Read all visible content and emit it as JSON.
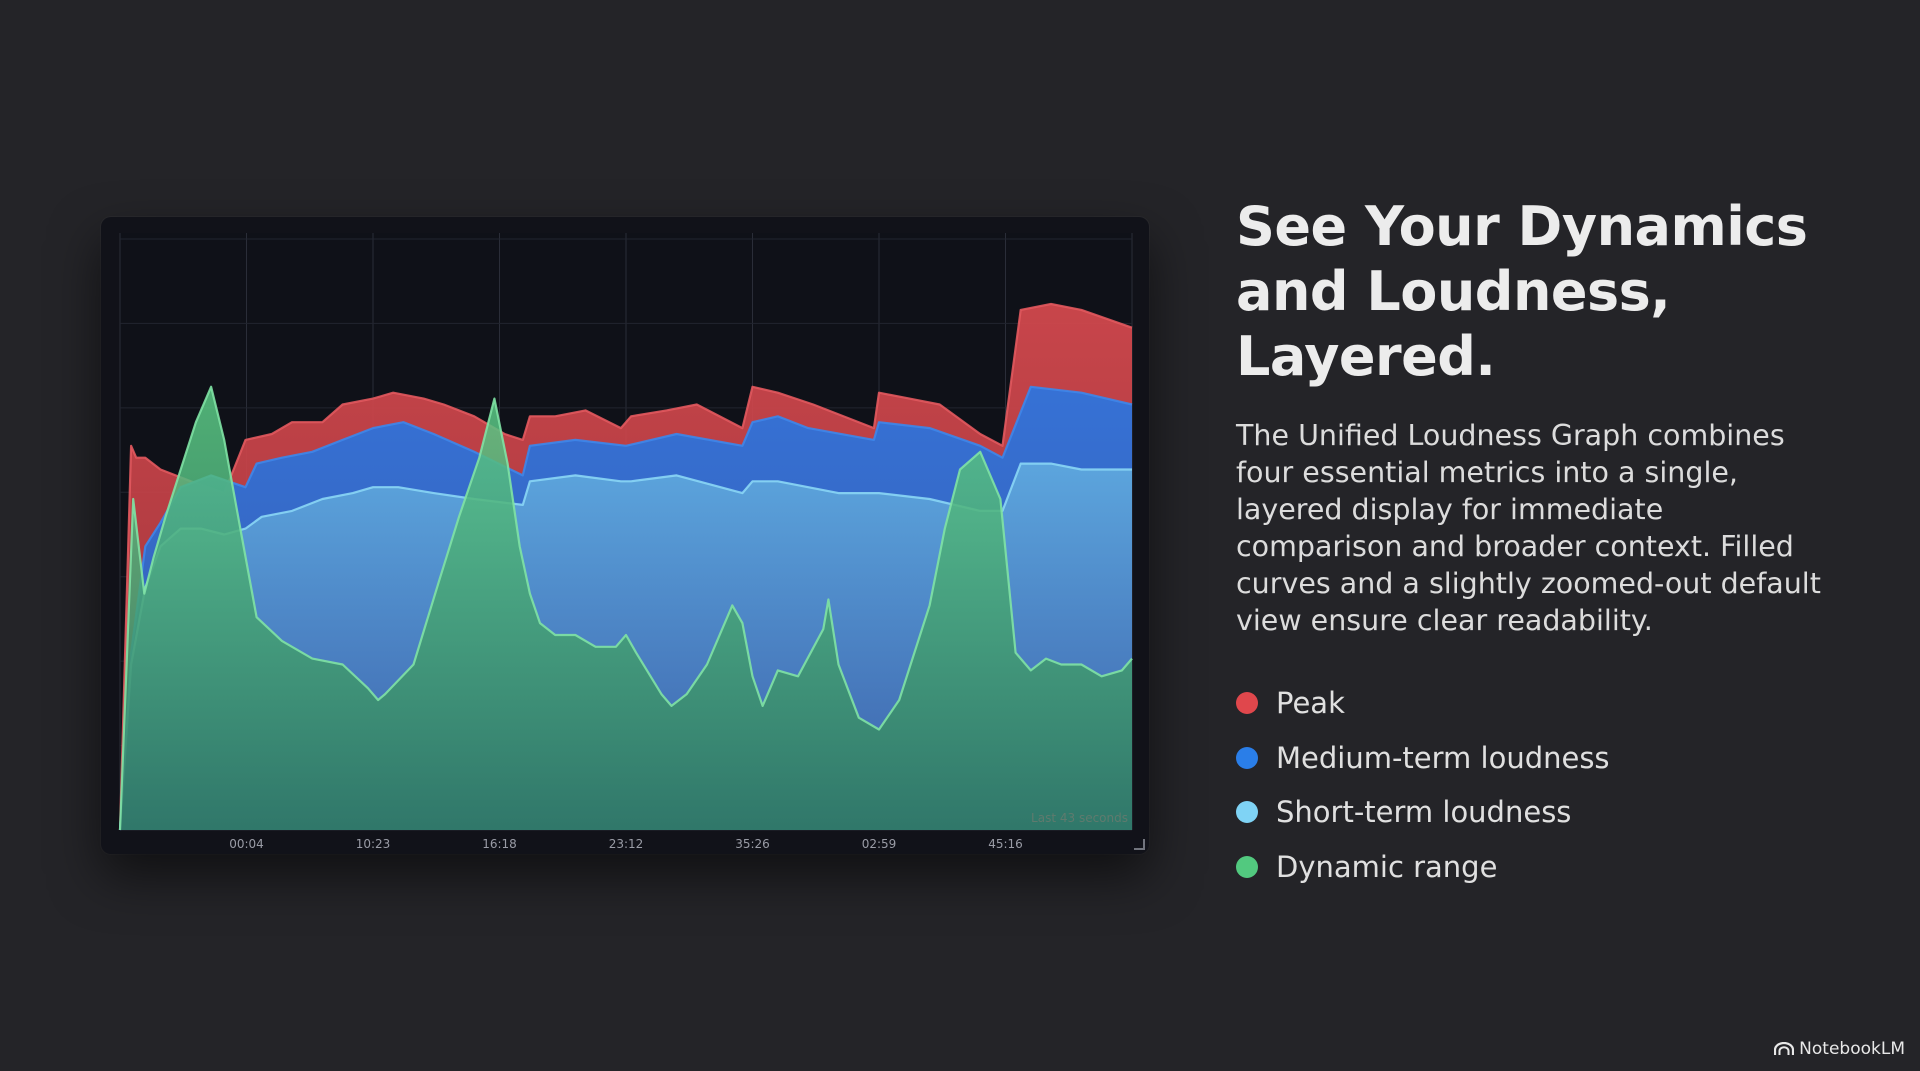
{
  "heading": "See Your Dynamics and Loudness, Layered.",
  "description": "The Unified Loudness Graph combines four essential metrics into a single, layered display for immediate comparison and broader context. Filled curves and a slightly zoomed-out default view ensure clear readability.",
  "legend": [
    {
      "label": "Peak",
      "color": "#e0474c"
    },
    {
      "label": "Medium-term loudness",
      "color": "#2a7ee8"
    },
    {
      "label": "Short-term loudness",
      "color": "#7fd3f5"
    },
    {
      "label": "Dynamic range",
      "color": "#52c97f"
    }
  ],
  "brand": "NotebookLM",
  "chart_data": {
    "type": "area",
    "title": "",
    "xlabel": "",
    "ylabel": "",
    "ylim": [
      0,
      100
    ],
    "xlim": [
      0,
      100
    ],
    "grid": true,
    "legend": "none",
    "x_tick_labels": [
      "00:04",
      "10:23",
      "16:18",
      "23:12",
      "35:26",
      "02:59",
      "45:16"
    ],
    "x_tick_positions": [
      12.5,
      25,
      37.5,
      50,
      62.5,
      75,
      87.5
    ],
    "annotation": "Last 43 seconds",
    "series": [
      {
        "name": "Peak",
        "color": "#d9474d",
        "x": [
          0,
          1.1,
          1.6,
          2.5,
          4,
          7,
          10.3,
          12.4,
          15,
          17,
          20,
          22,
          25,
          27,
          30,
          32,
          35,
          38,
          39.8,
          40.5,
          43,
          46,
          49.5,
          50.5,
          54,
          57,
          61.5,
          62.5,
          65,
          68.5,
          74.5,
          75,
          78,
          81,
          85,
          87.2,
          89,
          92,
          95,
          100
        ],
        "values": [
          0,
          65,
          63,
          63,
          61,
          59,
          57,
          66,
          67,
          69,
          69,
          72,
          73,
          74,
          73,
          72,
          70,
          67,
          66,
          70,
          70,
          71,
          68,
          70,
          71,
          72,
          68,
          75,
          74,
          72,
          68,
          74,
          73,
          72,
          67,
          65,
          88,
          89,
          88,
          85
        ]
      },
      {
        "name": "Medium-term loudness",
        "color": "#2f6fd6",
        "x": [
          0,
          1.1,
          2.5,
          4,
          6,
          9,
          12.4,
          13.5,
          16,
          19,
          22,
          25,
          28,
          31,
          35,
          39.8,
          40.5,
          45,
          50,
          55,
          61.5,
          62.5,
          65,
          68,
          74.5,
          75,
          80,
          85,
          87.2,
          90,
          95,
          100
        ],
        "values": [
          0,
          30,
          48,
          52,
          58,
          60,
          58,
          62,
          63,
          64,
          66,
          68,
          69,
          67,
          64,
          60,
          65,
          66,
          65,
          67,
          65,
          69,
          70,
          68,
          66,
          69,
          68,
          65,
          63,
          75,
          74,
          72
        ]
      },
      {
        "name": "Short-term loudness",
        "color": "#7fc9ee",
        "x": [
          0,
          1.1,
          2.5,
          4,
          6,
          8,
          10.3,
          12.4,
          14,
          17,
          20,
          23,
          25,
          27.5,
          31,
          35,
          39.8,
          40.5,
          45,
          49.5,
          50.5,
          55,
          61.5,
          62.5,
          65,
          68,
          71,
          75,
          80,
          85,
          87.2,
          89,
          92,
          95,
          100
        ],
        "values": [
          0,
          28,
          41,
          48,
          51,
          51,
          50,
          51,
          53,
          54,
          56,
          57,
          58,
          58,
          57,
          56,
          55,
          59,
          60,
          59,
          59,
          60,
          57,
          59,
          59,
          58,
          57,
          57,
          56,
          54,
          54,
          62,
          62,
          61,
          61
        ]
      },
      {
        "name": "Dynamic range",
        "color": "#5fd08a",
        "x": [
          0,
          1.3,
          2.4,
          3.3,
          4.5,
          6,
          7.5,
          9,
          10.3,
          12,
          13.5,
          16,
          19,
          22,
          24.5,
          25.5,
          26.2,
          29,
          31.5,
          33.5,
          35.5,
          37,
          38.3,
          39.5,
          40.5,
          41.5,
          43,
          45,
          47,
          49,
          50,
          51,
          53.5,
          54.5,
          56,
          58,
          60.5,
          61.5,
          62.5,
          63.5,
          65,
          67,
          69.5,
          70,
          71,
          73,
          75,
          77,
          80,
          81.5,
          83,
          85,
          87,
          88.5,
          90,
          91.5,
          93,
          95,
          97,
          99,
          100
        ],
        "values": [
          0,
          56,
          40,
          46,
          53,
          61,
          69,
          75,
          66,
          50,
          36,
          32,
          29,
          28,
          24,
          22,
          23,
          28,
          42,
          53,
          63,
          73,
          62,
          48,
          40,
          35,
          33,
          33,
          31,
          31,
          33,
          30,
          23,
          21,
          23,
          28,
          38,
          35,
          26,
          21,
          27,
          26,
          34,
          39,
          28,
          19,
          17,
          22,
          38,
          51,
          61,
          64,
          56,
          30,
          27,
          29,
          28,
          28,
          26,
          27,
          29
        ]
      }
    ]
  }
}
